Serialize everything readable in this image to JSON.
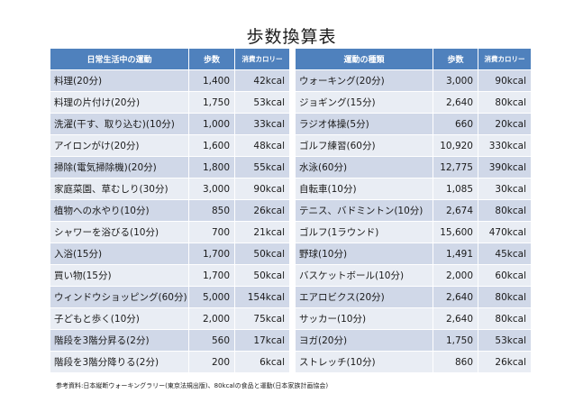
{
  "title": "歩数換算表",
  "left": {
    "headers": [
      "日常生活中の運動",
      "歩数",
      "消費カロリー"
    ],
    "rows": [
      [
        "料理(20分)",
        "1,400",
        "42kcal"
      ],
      [
        "料理の片付け(20分)",
        "1,750",
        "53kcal"
      ],
      [
        "洗濯(干す、取り込む)(10分)",
        "1,000",
        "33kcal"
      ],
      [
        "アイロンがけ(20分)",
        "1,600",
        "48kcal"
      ],
      [
        "掃除(電気掃除機)(20分)",
        "1,800",
        "55kcal"
      ],
      [
        "家庭菜園、草むしり(30分)",
        "3,000",
        "90kcal"
      ],
      [
        "植物への水やり(10分)",
        "850",
        "26kcal"
      ],
      [
        "シャワーを浴びる(10分)",
        "700",
        "21kcal"
      ],
      [
        "入浴(15分)",
        "1,700",
        "50kcal"
      ],
      [
        "買い物(15分)",
        "1,700",
        "50kcal"
      ],
      [
        "ウィンドウショッピング(60分)",
        "5,000",
        "154kcal"
      ],
      [
        "子どもと歩く(10分)",
        "2,000",
        "75kcal"
      ],
      [
        "階段を3階分昇る(2分)",
        "560",
        "17kcal"
      ],
      [
        "階段を3階分降りる(2分)",
        "200",
        "6kcal"
      ]
    ]
  },
  "right": {
    "headers": [
      "運動の種類",
      "歩数",
      "消費カロリー"
    ],
    "rows": [
      [
        "ウォーキング(20分)",
        "3,000",
        "90kcal"
      ],
      [
        "ジョギング(15分)",
        "2,640",
        "80kcal"
      ],
      [
        "ラジオ体操(5分)",
        "660",
        "20kcal"
      ],
      [
        "ゴルフ練習(60分)",
        "10,920",
        "330kcal"
      ],
      [
        "水泳(60分)",
        "12,775",
        "390kcal"
      ],
      [
        "自転車(10分)",
        "1,085",
        "30kcal"
      ],
      [
        "テニス、バドミントン(10分)",
        "2,674",
        "80kcal"
      ],
      [
        "ゴルフ(1ラウンド)",
        "15,600",
        "470kcal"
      ],
      [
        "野球(10分)",
        "1,491",
        "45kcal"
      ],
      [
        "バスケットボール(10分)",
        "2,000",
        "60kcal"
      ],
      [
        "エアロビクス(20分)",
        "2,640",
        "80kcal"
      ],
      [
        "サッカー(10分)",
        "2,640",
        "80kcal"
      ],
      [
        "ヨガ(20分)",
        "1,750",
        "53kcal"
      ],
      [
        "ストレッチ(10分)",
        "860",
        "26kcal"
      ]
    ]
  },
  "source": "参考資料:日本縦断ウォーキングラリー(東京法規出版)、80kcalの食品と運動(日本家族計画協会)"
}
